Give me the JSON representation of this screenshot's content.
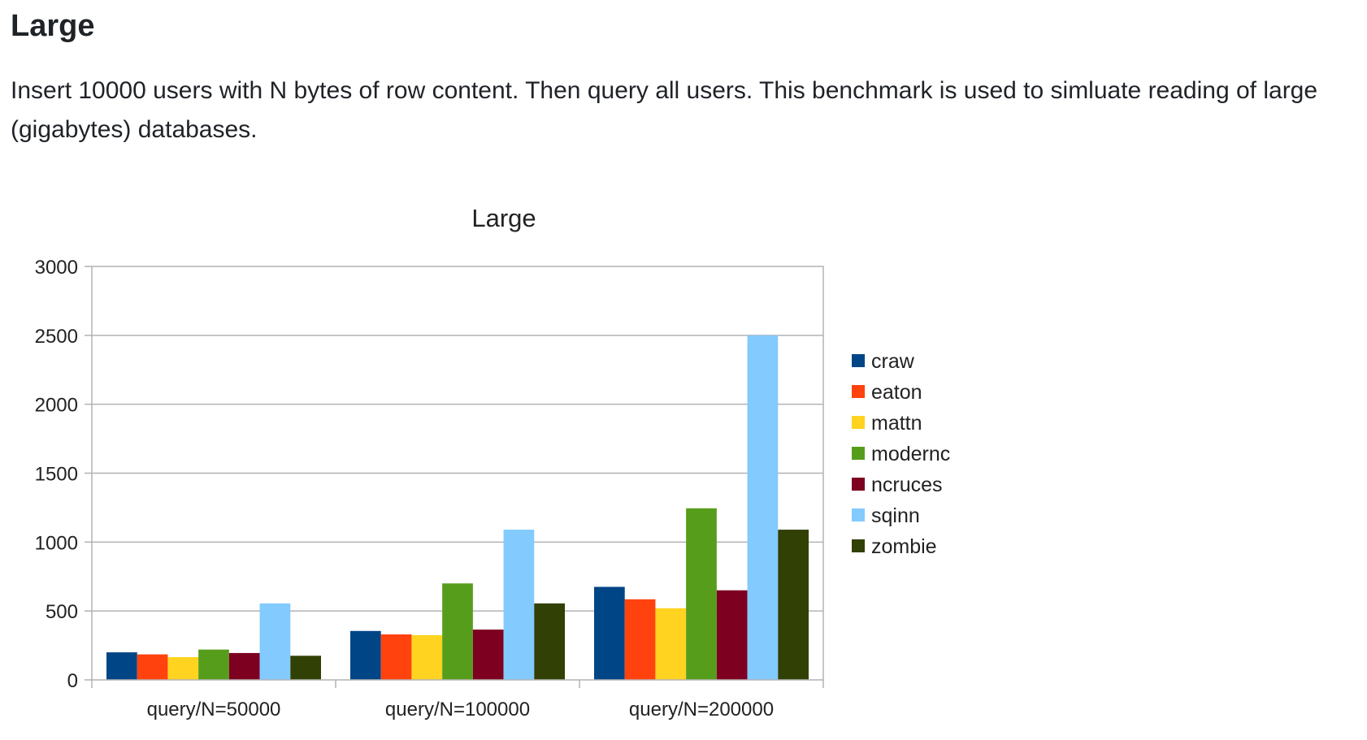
{
  "doc": {
    "heading": "Large",
    "paragraph": "Insert 10000 users with N bytes of row content. Then query all users. This benchmark is used to simluate reading of large (gigabytes) databases."
  },
  "chart_data": {
    "type": "bar",
    "title": "Large",
    "xlabel": "",
    "ylabel": "",
    "ylim": [
      0,
      3000
    ],
    "yticks": [
      0,
      500,
      1000,
      1500,
      2000,
      2500,
      3000
    ],
    "grid": true,
    "legend_position": "right",
    "categories": [
      "query/N=50000",
      "query/N=100000",
      "query/N=200000"
    ],
    "series": [
      {
        "name": "craw",
        "color": "#004586",
        "values": [
          200,
          355,
          675
        ]
      },
      {
        "name": "eaton",
        "color": "#ff420e",
        "values": [
          185,
          330,
          585
        ]
      },
      {
        "name": "mattn",
        "color": "#ffd320",
        "values": [
          165,
          325,
          520
        ]
      },
      {
        "name": "modernc",
        "color": "#579d1c",
        "values": [
          220,
          700,
          1245
        ]
      },
      {
        "name": "ncruces",
        "color": "#7e0021",
        "values": [
          195,
          365,
          650
        ]
      },
      {
        "name": "sqinn",
        "color": "#83caff",
        "values": [
          555,
          1090,
          2500
        ]
      },
      {
        "name": "zombie",
        "color": "#314004",
        "values": [
          175,
          555,
          1090
        ]
      }
    ]
  }
}
